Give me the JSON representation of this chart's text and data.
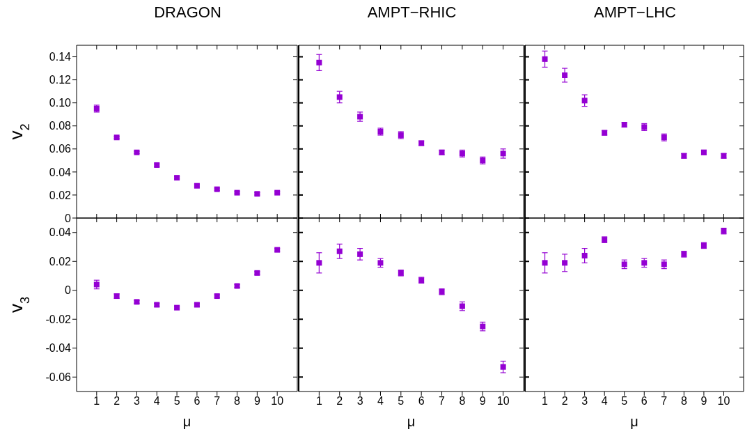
{
  "chart_data": [
    {
      "type": "scatter",
      "title": "DRAGON",
      "ylabel": "v$_{2}$",
      "x": [
        1,
        2,
        3,
        4,
        5,
        6,
        7,
        8,
        9,
        10
      ],
      "values": [
        0.095,
        0.07,
        0.057,
        0.046,
        0.035,
        0.028,
        0.025,
        0.022,
        0.021,
        0.022
      ],
      "errors": [
        0.003,
        0.001,
        0.001,
        0.001,
        0.001,
        0.001,
        0.001,
        0.001,
        0.001,
        0.001
      ],
      "color": "#9400d3",
      "marker": "square",
      "xlim": [
        0,
        11
      ],
      "xticks": [
        1,
        2,
        3,
        4,
        5,
        6,
        7,
        8,
        9,
        10
      ],
      "ylim": [
        0,
        0.15
      ],
      "yticks": [
        0,
        0.02,
        0.04,
        0.06,
        0.08,
        {
          "value": 0.1,
          "label": "0.10"
        },
        0.12,
        0.14
      ],
      "tick_labels": "y"
    },
    {
      "type": "scatter",
      "title": "AMPT−RHIC",
      "x": [
        1,
        2,
        3,
        4,
        5,
        6,
        7,
        8,
        9,
        10
      ],
      "values": [
        0.135,
        0.105,
        0.088,
        0.075,
        0.072,
        0.065,
        0.057,
        0.056,
        0.05,
        0.056
      ],
      "errors": [
        0.007,
        0.005,
        0.004,
        0.003,
        0.003,
        0.002,
        0.002,
        0.003,
        0.003,
        0.004
      ],
      "color": "#9400d3",
      "marker": "square",
      "xlim": [
        0,
        11
      ],
      "xticks": [
        1,
        2,
        3,
        4,
        5,
        6,
        7,
        8,
        9,
        10
      ],
      "ylim": [
        0,
        0.15
      ],
      "yticks": [
        0,
        0.02,
        0.04,
        0.06,
        0.08,
        0.1,
        0.12,
        0.14
      ],
      "tick_labels": false
    },
    {
      "type": "scatter",
      "title": "AMPT−LHC",
      "x": [
        1,
        2,
        3,
        4,
        5,
        6,
        7,
        8,
        9,
        10
      ],
      "values": [
        0.138,
        0.124,
        0.102,
        0.074,
        0.081,
        0.079,
        0.07,
        0.054,
        0.057,
        0.054
      ],
      "errors": [
        0.007,
        0.006,
        0.005,
        0.002,
        0.002,
        0.003,
        0.003,
        0.002,
        0.002,
        0.002
      ],
      "color": "#9400d3",
      "marker": "square",
      "xlim": [
        0,
        11
      ],
      "xticks": [
        1,
        2,
        3,
        4,
        5,
        6,
        7,
        8,
        9,
        10
      ],
      "ylim": [
        0,
        0.15
      ],
      "yticks": [
        0,
        0.02,
        0.04,
        0.06,
        0.08,
        0.1,
        0.12,
        0.14
      ],
      "tick_labels": false
    },
    {
      "type": "scatter",
      "xlabel": "μ",
      "ylabel": "v$_{3}$",
      "x": [
        1,
        2,
        3,
        4,
        5,
        6,
        7,
        8,
        9,
        10
      ],
      "values": [
        0.004,
        -0.004,
        -0.008,
        -0.01,
        -0.012,
        -0.01,
        -0.004,
        0.003,
        0.012,
        0.028
      ],
      "errors": [
        0.003,
        0.0015,
        0.001,
        0.001,
        0.001,
        0.001,
        0.001,
        0.001,
        0.001,
        0.001
      ],
      "color": "#9400d3",
      "marker": "square",
      "xlim": [
        0,
        11
      ],
      "xticks": [
        1,
        2,
        3,
        4,
        5,
        6,
        7,
        8,
        9,
        10
      ],
      "ylim": [
        -0.07,
        0.05
      ],
      "yticks": [
        -0.06,
        -0.04,
        -0.02,
        0,
        0.02,
        0.04
      ]
    },
    {
      "type": "scatter",
      "xlabel": "μ",
      "x": [
        1,
        2,
        3,
        4,
        5,
        6,
        7,
        8,
        9,
        10
      ],
      "values": [
        0.019,
        0.027,
        0.025,
        0.019,
        0.012,
        0.007,
        -0.001,
        -0.011,
        -0.025,
        -0.053
      ],
      "errors": [
        0.007,
        0.005,
        0.004,
        0.003,
        0.002,
        0.002,
        0.002,
        0.003,
        0.003,
        0.004
      ],
      "color": "#9400d3",
      "marker": "square",
      "xlim": [
        0,
        11
      ],
      "xticks": [
        1,
        2,
        3,
        4,
        5,
        6,
        7,
        8,
        9,
        10
      ],
      "ylim": [
        -0.07,
        0.05
      ],
      "yticks": [
        -0.06,
        -0.04,
        -0.02,
        0,
        0.02,
        0.04
      ],
      "tick_labels": "x"
    },
    {
      "type": "scatter",
      "xlabel": "μ",
      "x": [
        1,
        2,
        3,
        4,
        5,
        6,
        7,
        8,
        9,
        10
      ],
      "values": [
        0.019,
        0.019,
        0.024,
        0.035,
        0.018,
        0.019,
        0.018,
        0.025,
        0.031,
        0.041
      ],
      "errors": [
        0.007,
        0.006,
        0.005,
        0.002,
        0.003,
        0.003,
        0.003,
        0.002,
        0.002,
        0.002
      ],
      "color": "#9400d3",
      "marker": "square",
      "xlim": [
        0,
        11
      ],
      "xticks": [
        1,
        2,
        3,
        4,
        5,
        6,
        7,
        8,
        9,
        10
      ],
      "ylim": [
        -0.07,
        0.05
      ],
      "yticks": [
        -0.06,
        -0.04,
        -0.02,
        0,
        0.02,
        0.04
      ],
      "tick_labels": "x"
    }
  ]
}
